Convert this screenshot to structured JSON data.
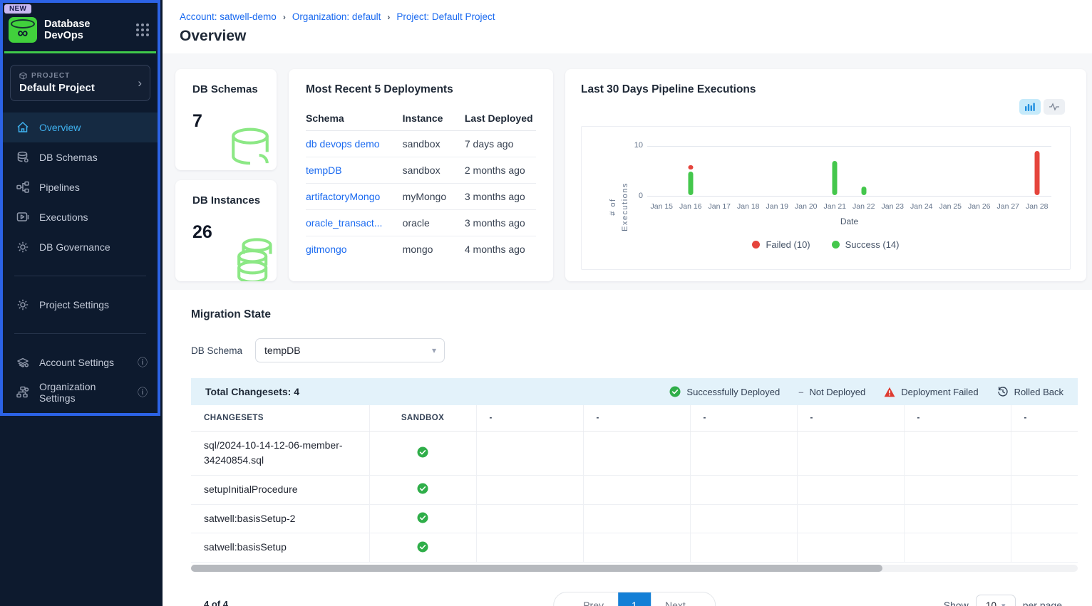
{
  "colors": {
    "sidebar_bg": "#0d1a2e",
    "sidebar_frame_blue": "#2c63e6",
    "brand_green": "#41d13c",
    "active_nav_blue": "#3fb2f0",
    "link_blue": "#1a6af0",
    "success_green": "#2fae49",
    "failed_red": "#e5443c",
    "active_page_blue": "#147fd6",
    "summary_bar_bg": "#e3f2fa"
  },
  "sidebar": {
    "badge": "NEW",
    "app_title": "Database DevOps",
    "project_label": "PROJECT",
    "project_name": "Default Project",
    "nav": [
      {
        "label": "Overview",
        "icon": "home-icon",
        "active": true
      },
      {
        "label": "DB Schemas",
        "icon": "database-icon",
        "active": false
      },
      {
        "label": "Pipelines",
        "icon": "pipeline-icon",
        "active": false
      },
      {
        "label": "Executions",
        "icon": "executions-icon",
        "active": false
      },
      {
        "label": "DB Governance",
        "icon": "governance-icon",
        "active": false
      }
    ],
    "secondary": [
      {
        "label": "Project Settings",
        "icon": "gear-icon"
      }
    ],
    "tertiary": [
      {
        "label": "Account Settings",
        "icon": "account-icon",
        "info": true
      },
      {
        "label": "Organization Settings",
        "icon": "organization-icon",
        "info": true
      }
    ]
  },
  "breadcrumb": {
    "items": [
      "Account: satwell-demo",
      "Organization: default",
      "Project: Default Project"
    ],
    "separator": "›"
  },
  "page_title": "Overview",
  "stats": [
    {
      "title": "DB Schemas",
      "value": "7",
      "icon": "database-outline-icon"
    },
    {
      "title": "DB Instances",
      "value": "26",
      "icon": "database-stack-icon"
    }
  ],
  "deployments": {
    "title": "Most Recent 5 Deployments",
    "columns": [
      "Schema",
      "Instance",
      "Last Deployed"
    ],
    "rows": [
      {
        "schema": "db devops demo",
        "instance": "sandbox",
        "last_deployed": "7 days ago"
      },
      {
        "schema": "tempDB",
        "instance": "sandbox",
        "last_deployed": "2 months ago"
      },
      {
        "schema": "artifactoryMongo",
        "instance": "myMongo",
        "last_deployed": "3 months ago"
      },
      {
        "schema": "oracle_transact...",
        "instance": "oracle",
        "last_deployed": "3 months ago"
      },
      {
        "schema": "gitmongo",
        "instance": "mongo",
        "last_deployed": "4 months ago"
      }
    ]
  },
  "chart_data": {
    "type": "bar",
    "title": "Last 30 Days Pipeline Executions",
    "categories": [
      "Jan 15",
      "Jan 16",
      "Jan 17",
      "Jan 18",
      "Jan 19",
      "Jan 20",
      "Jan 21",
      "Jan 22",
      "Jan 23",
      "Jan 24",
      "Jan 25",
      "Jan 26",
      "Jan 27",
      "Jan 28"
    ],
    "series": [
      {
        "name": "Failed (10)",
        "color": "#e5443c",
        "values": [
          0,
          1,
          0,
          0,
          0,
          0,
          0,
          0,
          0,
          0,
          0,
          0,
          0,
          9
        ]
      },
      {
        "name": "Success (14)",
        "color": "#44c74c",
        "values": [
          0,
          5,
          0,
          0,
          0,
          0,
          7,
          2,
          0,
          0,
          0,
          0,
          0,
          0
        ]
      }
    ],
    "stacked": true,
    "xlabel": "Date",
    "ylabel": "# of\nExecutions",
    "yticks": [
      "10",
      "0"
    ],
    "ylim": [
      0,
      10
    ],
    "legend_position": "bottom",
    "grid": "top-line-only"
  },
  "migration": {
    "title": "Migration State",
    "db_schema_label": "DB Schema",
    "db_schema_value": "tempDB",
    "total_label": "Total Changesets: 4",
    "legend": [
      {
        "label": "Successfully Deployed",
        "icon": "success-check-icon"
      },
      {
        "label": "Not Deployed",
        "icon": "dash-icon"
      },
      {
        "label": "Deployment Failed",
        "icon": "warning-triangle-icon"
      },
      {
        "label": "Rolled Back",
        "icon": "rollback-icon"
      }
    ],
    "table": {
      "columns": [
        "CHANGESETS",
        "SANDBOX",
        "-",
        "-",
        "-",
        "-",
        "-",
        "-"
      ],
      "rows": [
        {
          "changeset": "sql/2024-10-14-12-06-member-34240854.sql",
          "sandbox": "success"
        },
        {
          "changeset": "setupInitialProcedure",
          "sandbox": "success"
        },
        {
          "changeset": "satwell:basisSetup-2",
          "sandbox": "success"
        },
        {
          "changeset": "satwell:basisSetup",
          "sandbox": "success"
        }
      ]
    },
    "pagination": {
      "results_count": "4 of 4",
      "prev_label": "Prev",
      "page": "1",
      "next_label": "Next",
      "show_label": "Show",
      "page_size": "10",
      "per_page_label": "per page"
    }
  }
}
